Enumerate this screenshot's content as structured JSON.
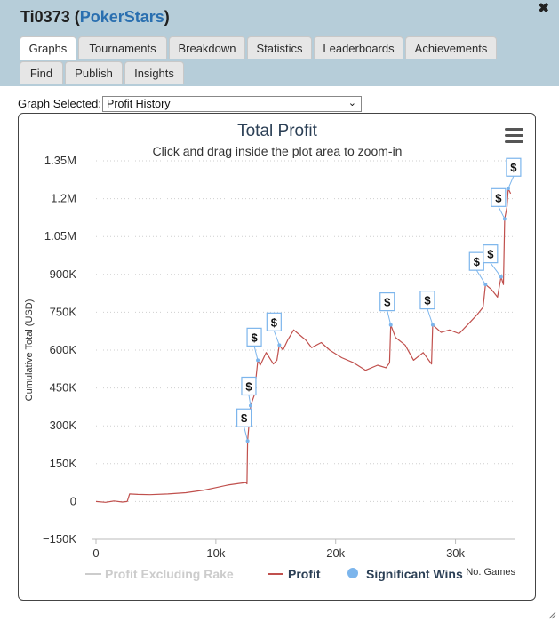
{
  "window": {
    "title_user": "Ti0373",
    "title_open": " (",
    "title_site": "PokerStars",
    "title_close": ")"
  },
  "tabs": [
    {
      "label": "Graphs"
    },
    {
      "label": "Tournaments"
    },
    {
      "label": "Breakdown"
    },
    {
      "label": "Statistics"
    },
    {
      "label": "Leaderboards"
    },
    {
      "label": "Achievements"
    },
    {
      "label": "Find"
    },
    {
      "label": "Publish"
    },
    {
      "label": "Insights"
    }
  ],
  "controls": {
    "graph_selected_label": "Graph Selected:",
    "graph_selected_value": "Profit History"
  },
  "chart_data": {
    "type": "line",
    "title": "Total Profit",
    "subtitle": "Click and drag inside the plot area to zoom-in",
    "ylabel": "Cumulative Total (USD)",
    "xlabel": "No. Games",
    "ylim": [
      -150000,
      1350000
    ],
    "xlim": [
      0,
      35000
    ],
    "y_ticks": [
      {
        "v": 1350000,
        "label": "1.35M"
      },
      {
        "v": 1200000,
        "label": "1.2M"
      },
      {
        "v": 1050000,
        "label": "1.05M"
      },
      {
        "v": 900000,
        "label": "900K"
      },
      {
        "v": 750000,
        "label": "750K"
      },
      {
        "v": 600000,
        "label": "600K"
      },
      {
        "v": 450000,
        "label": "450K"
      },
      {
        "v": 300000,
        "label": "300K"
      },
      {
        "v": 150000,
        "label": "150K"
      },
      {
        "v": 0,
        "label": "0"
      },
      {
        "v": -150000,
        "label": "−150K"
      }
    ],
    "x_ticks": [
      {
        "v": 0,
        "label": "0"
      },
      {
        "v": 10000,
        "label": "10k"
      },
      {
        "v": 20000,
        "label": "20k"
      },
      {
        "v": 30000,
        "label": "30k"
      }
    ],
    "grid": "horizontal dotted",
    "legend_placement": "bottom",
    "legend": [
      {
        "name": "Profit Excluding Rake",
        "color": "#cccccc",
        "enabled": false
      },
      {
        "name": "Profit",
        "color": "#c0504d",
        "enabled": true
      },
      {
        "name": "Significant Wins",
        "color": "#7cb5ec",
        "enabled": true
      }
    ],
    "marker_label": "$",
    "series": [
      {
        "name": "Profit",
        "color": "#c0504d",
        "points": [
          [
            0,
            0
          ],
          [
            800,
            -3000
          ],
          [
            1500,
            2000
          ],
          [
            2200,
            -2000
          ],
          [
            2600,
            0
          ],
          [
            2800,
            30000
          ],
          [
            3500,
            28000
          ],
          [
            4500,
            27000
          ],
          [
            6000,
            30000
          ],
          [
            7500,
            35000
          ],
          [
            9000,
            45000
          ],
          [
            10000,
            55000
          ],
          [
            11000,
            65000
          ],
          [
            12000,
            72000
          ],
          [
            12500,
            75000
          ],
          [
            12600,
            70000
          ],
          [
            12650,
            240000
          ],
          [
            12900,
            380000
          ],
          [
            13200,
            420000
          ],
          [
            13500,
            560000
          ],
          [
            13700,
            540000
          ],
          [
            14200,
            590000
          ],
          [
            14800,
            545000
          ],
          [
            15100,
            560000
          ],
          [
            15300,
            620000
          ],
          [
            15600,
            600000
          ],
          [
            16000,
            640000
          ],
          [
            16500,
            680000
          ],
          [
            17000,
            660000
          ],
          [
            17500,
            640000
          ],
          [
            18000,
            610000
          ],
          [
            18800,
            630000
          ],
          [
            19500,
            600000
          ],
          [
            20500,
            570000
          ],
          [
            21500,
            550000
          ],
          [
            22500,
            520000
          ],
          [
            23500,
            540000
          ],
          [
            24200,
            530000
          ],
          [
            24500,
            550000
          ],
          [
            24600,
            700000
          ],
          [
            25000,
            650000
          ],
          [
            25800,
            620000
          ],
          [
            26500,
            560000
          ],
          [
            27300,
            590000
          ],
          [
            28000,
            545000
          ],
          [
            28100,
            700000
          ],
          [
            28800,
            670000
          ],
          [
            29500,
            680000
          ],
          [
            30300,
            665000
          ],
          [
            31000,
            700000
          ],
          [
            31800,
            740000
          ],
          [
            32300,
            770000
          ],
          [
            32500,
            860000
          ],
          [
            33000,
            840000
          ],
          [
            33500,
            810000
          ],
          [
            33800,
            890000
          ],
          [
            34000,
            860000
          ],
          [
            34100,
            1120000
          ],
          [
            34300,
            1170000
          ],
          [
            34400,
            1240000
          ],
          [
            34600,
            1220000
          ]
        ]
      }
    ],
    "significant_wins": [
      [
        12650,
        240000
      ],
      [
        12900,
        380000
      ],
      [
        13500,
        560000
      ],
      [
        15300,
        620000
      ],
      [
        24600,
        700000
      ],
      [
        28100,
        700000
      ],
      [
        32500,
        860000
      ],
      [
        33800,
        890000
      ],
      [
        34100,
        1120000
      ],
      [
        34400,
        1240000
      ]
    ]
  }
}
